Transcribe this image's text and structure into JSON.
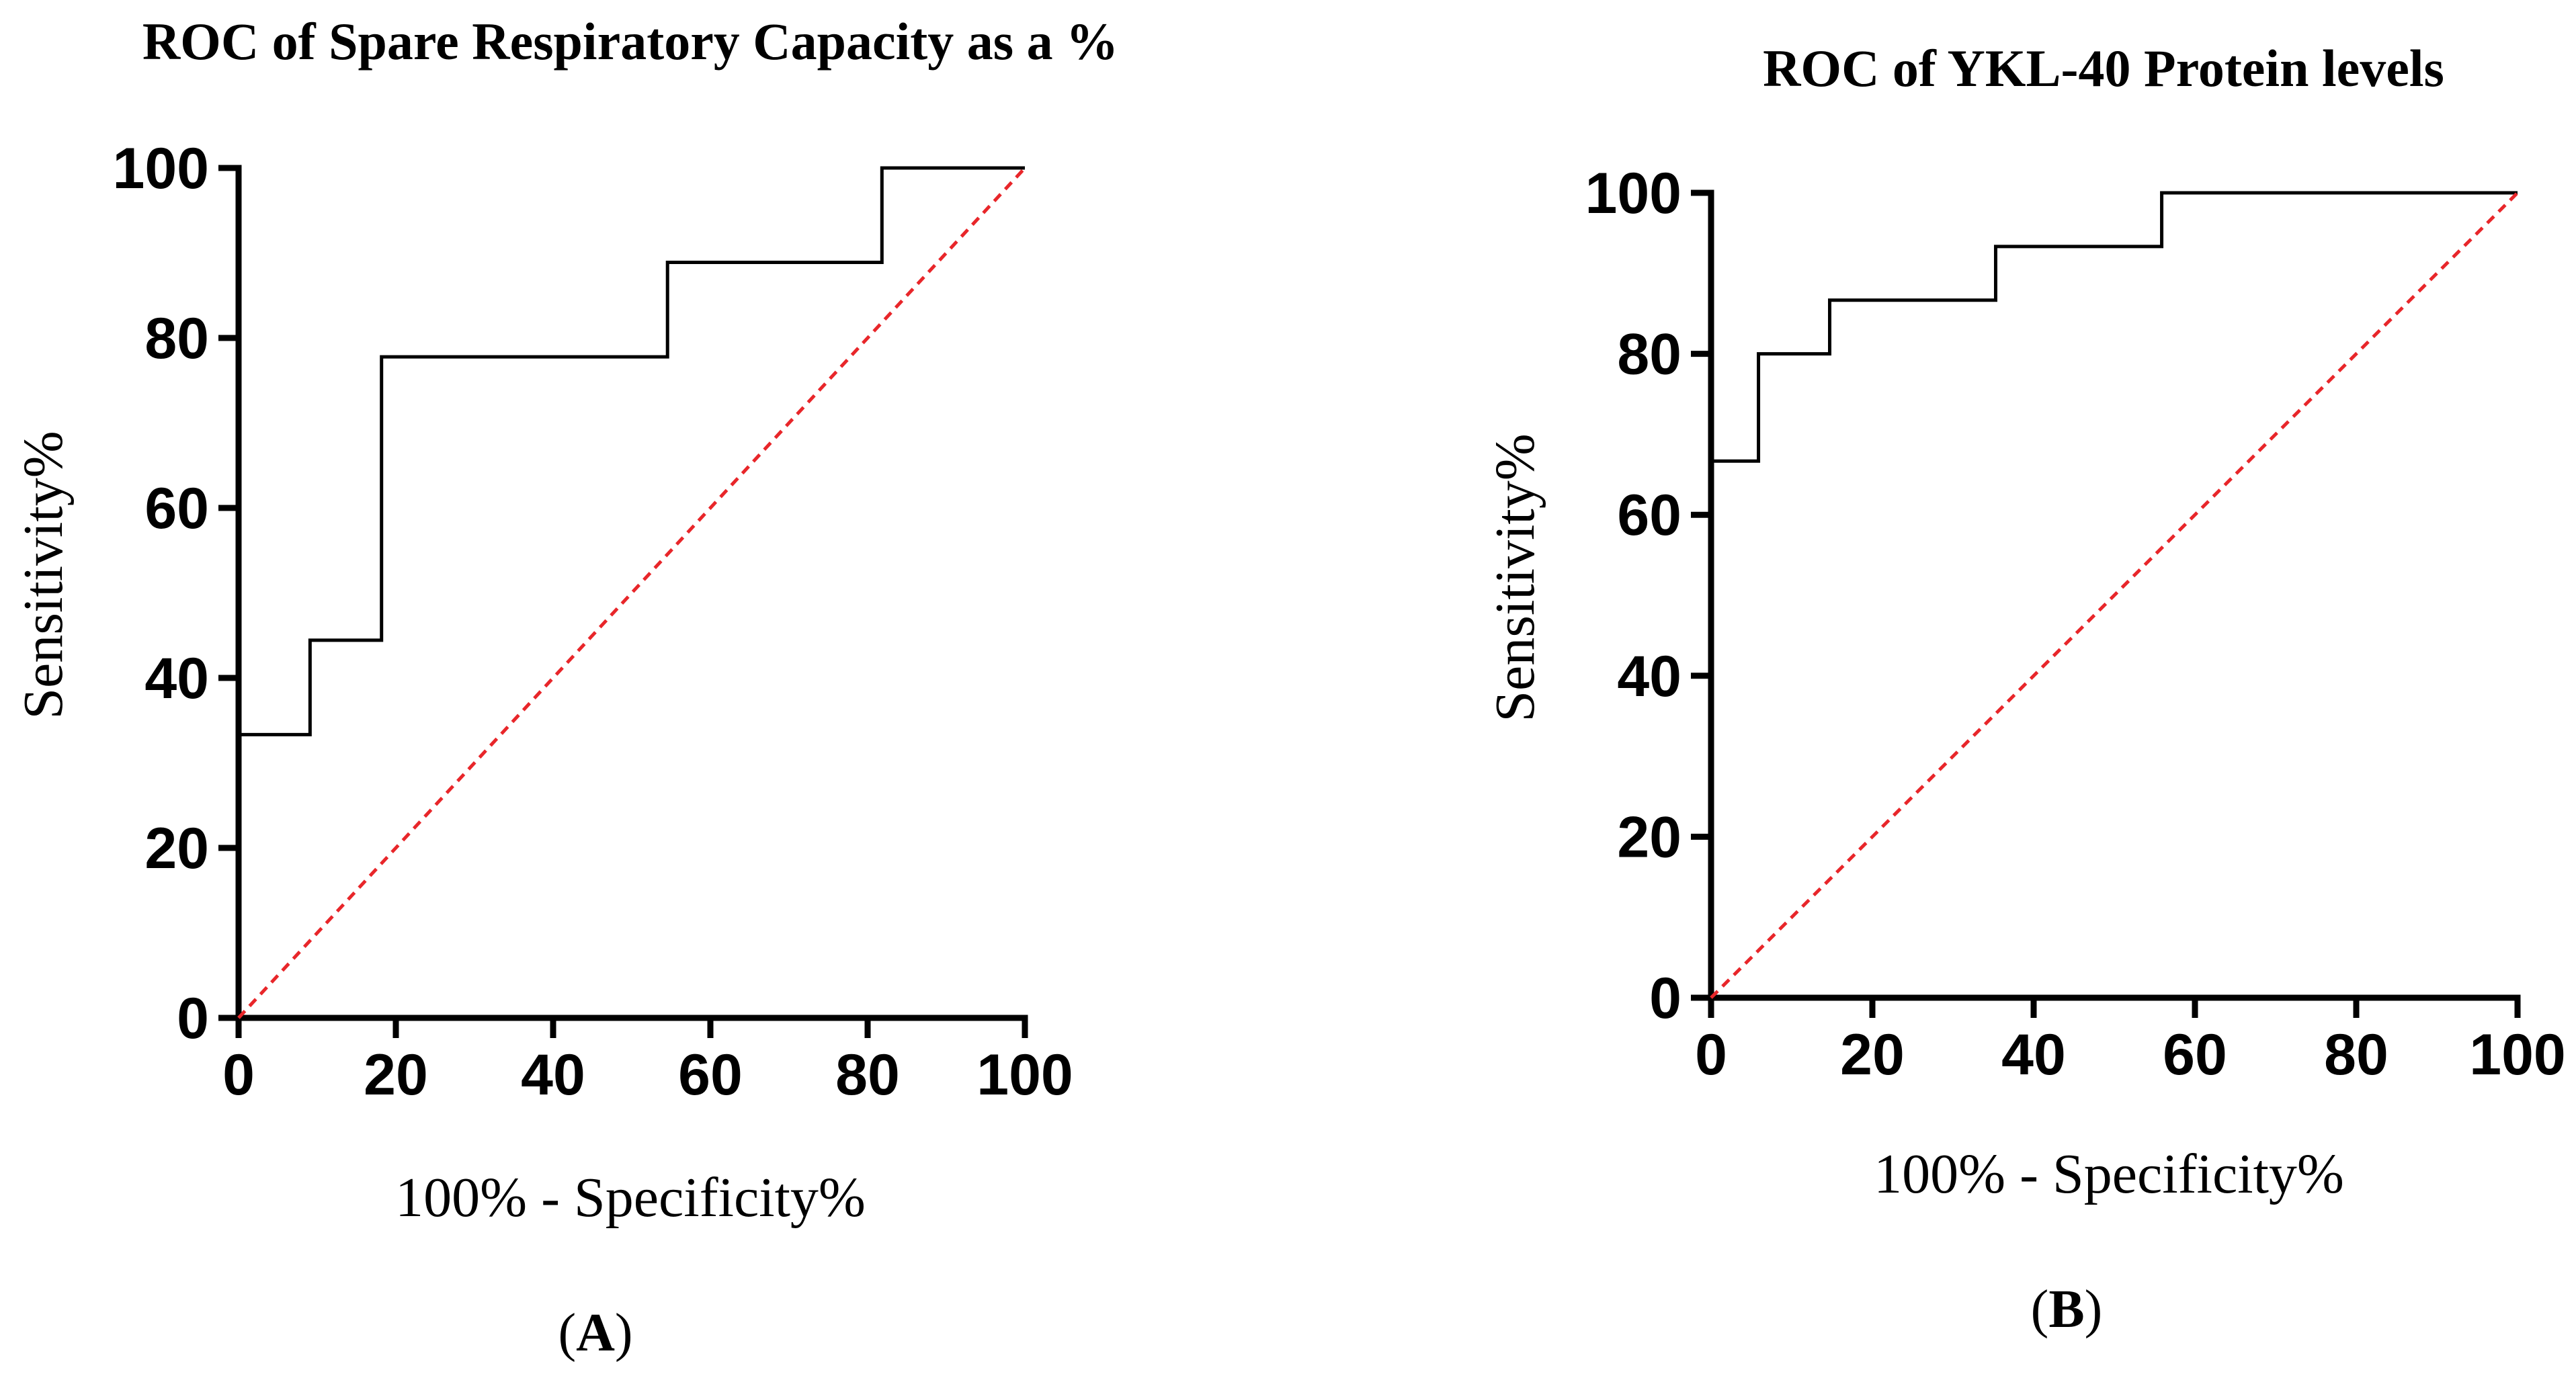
{
  "chart_data": [
    {
      "type": "line",
      "title": "ROC of Spare Respiratory Capacity as a %",
      "xlabel": "100% - Specificity%",
      "ylabel": "Sensitivity%",
      "xlim": [
        0,
        100
      ],
      "ylim": [
        0,
        100
      ],
      "xticks": [
        0,
        20,
        40,
        60,
        80,
        100
      ],
      "yticks": [
        0,
        20,
        40,
        60,
        80,
        100
      ],
      "panel_label": {
        "open": "(",
        "letter": "A",
        "close": ")"
      },
      "series": [
        {
          "name": "ROC curve",
          "color": "#000000",
          "x": [
            0,
            9.09,
            9.09,
            18.18,
            18.18,
            54.55,
            54.55,
            81.82,
            81.82,
            100
          ],
          "y": [
            33.33,
            33.33,
            44.44,
            44.44,
            77.78,
            77.78,
            88.89,
            88.89,
            100,
            100
          ]
        },
        {
          "name": "Reference line",
          "color": "#e8262a",
          "dashed": true,
          "x": [
            0,
            100
          ],
          "y": [
            0,
            100
          ]
        }
      ]
    },
    {
      "type": "line",
      "title": "ROC of YKL-40 Protein levels",
      "xlabel": "100% - Specificity%",
      "ylabel": "Sensitivity%",
      "xlim": [
        0,
        100
      ],
      "ylim": [
        0,
        100
      ],
      "xticks": [
        0,
        20,
        40,
        60,
        80,
        100
      ],
      "yticks": [
        0,
        20,
        40,
        60,
        80,
        100
      ],
      "panel_label": {
        "open": "(",
        "letter": "B",
        "close": ")"
      },
      "series": [
        {
          "name": "ROC curve",
          "color": "#000000",
          "x": [
            0,
            5.88,
            5.88,
            14.71,
            14.71,
            35.29,
            35.29,
            55.88,
            55.88,
            100
          ],
          "y": [
            66.67,
            66.67,
            80,
            80,
            86.67,
            86.67,
            93.33,
            93.33,
            100,
            100
          ]
        },
        {
          "name": "Reference line",
          "color": "#e8262a",
          "dashed": true,
          "x": [
            0,
            100
          ],
          "y": [
            0,
            100
          ]
        }
      ]
    }
  ]
}
